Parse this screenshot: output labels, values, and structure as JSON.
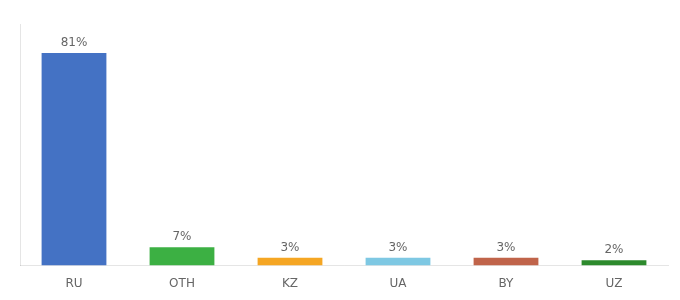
{
  "chart_data": {
    "type": "bar",
    "categories": [
      "RU",
      "OTH",
      "KZ",
      "UA",
      "BY",
      "UZ"
    ],
    "values": [
      81,
      7,
      3,
      3,
      3,
      2
    ],
    "value_labels": [
      "81%",
      "7%",
      "3%",
      "3%",
      "3%",
      "2%"
    ],
    "colors": [
      "#4472c4",
      "#3cb043",
      "#f5a623",
      "#7ec8e3",
      "#c0644a",
      "#2d8a2d"
    ],
    "ylim": [
      0,
      92
    ],
    "data_labels": true,
    "tick_labels": "x",
    "grid": false
  }
}
